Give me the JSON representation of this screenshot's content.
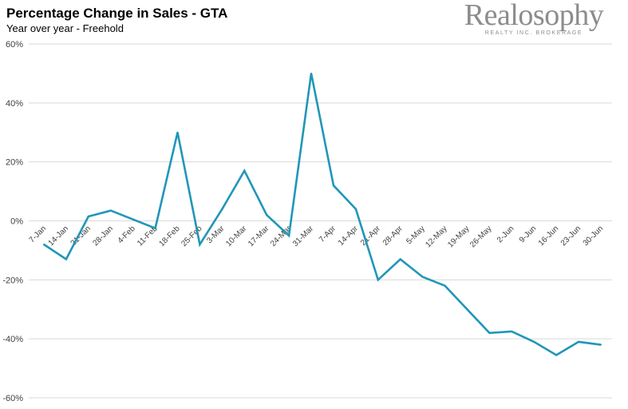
{
  "header": {
    "title": "Percentage Change in Sales - GTA",
    "subtitle": "Year over year - Freehold"
  },
  "logo": {
    "name": "Realosophy",
    "tagline": "REALTY INC. BROKERAGE"
  },
  "colors": {
    "line": "#2196b8",
    "grid": "#d9d9d9",
    "zero_line": "#d9d9d9"
  },
  "chart_data": {
    "type": "line",
    "title": "Percentage Change in Sales - GTA",
    "subtitle": "Year over year - Freehold",
    "xlabel": "",
    "ylabel": "",
    "ylim": [
      -60,
      60
    ],
    "ytick_step": 20,
    "ytick_format": "percent",
    "grid": true,
    "legend": "none",
    "categories": [
      "7-Jan",
      "14-Jan",
      "21-Jan",
      "28-Jan",
      "4-Feb",
      "11-Feb",
      "18-Feb",
      "25-Feb",
      "3-Mar",
      "10-Mar",
      "17-Mar",
      "24-Mar",
      "31-Mar",
      "7-Apr",
      "14-Apr",
      "21-Apr",
      "28-Apr",
      "5-May",
      "12-May",
      "19-May",
      "26-May",
      "2-Jun",
      "9-Jun",
      "16-Jun",
      "23-Jun",
      "30-Jun"
    ],
    "series": [
      {
        "values": [
          -8,
          -13,
          1.5,
          3.5,
          0.5,
          -2.5,
          30,
          -8,
          4,
          17,
          2,
          -5,
          50,
          12,
          4,
          -20,
          -13,
          -19,
          -22,
          -30,
          -38,
          -37.5,
          -41,
          -45.5,
          -41,
          -42
        ]
      }
    ]
  }
}
